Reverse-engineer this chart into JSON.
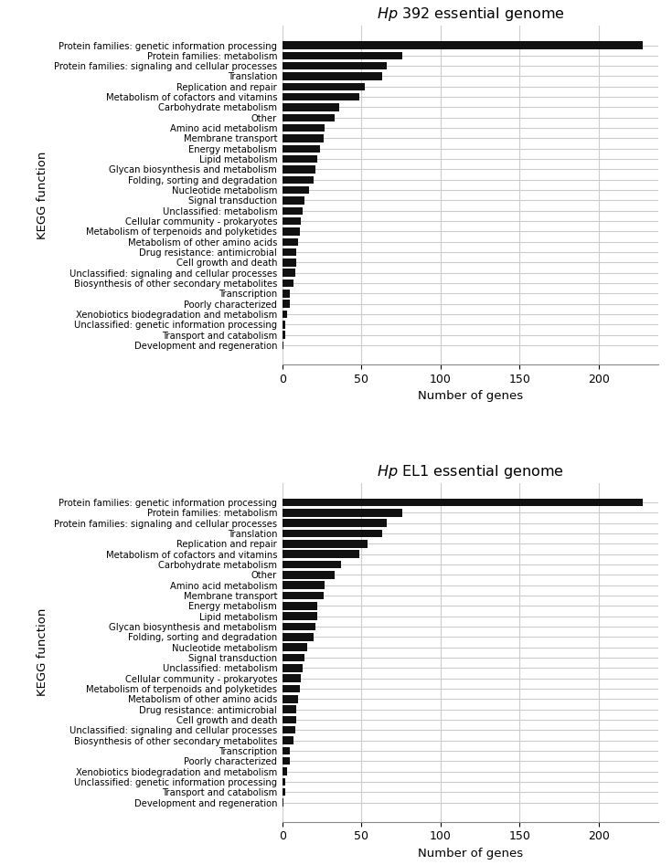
{
  "categories": [
    "Protein families: genetic information processing",
    "Protein families: metabolism",
    "Protein families: signaling and cellular processes",
    "Translation",
    "Replication and repair",
    "Metabolism of cofactors and vitamins",
    "Carbohydrate metabolism",
    "Other",
    "Amino acid metabolism",
    "Membrane transport",
    "Energy metabolism",
    "Lipid metabolism",
    "Glycan biosynthesis and metabolism",
    "Folding, sorting and degradation",
    "Nucleotide metabolism",
    "Signal transduction",
    "Unclassified: metabolism",
    "Cellular community - prokaryotes",
    "Metabolism of terpenoids and polyketides",
    "Metabolism of other amino acids",
    "Drug resistance: antimicrobial",
    "Cell growth and death",
    "Unclassified: signaling and cellular processes",
    "Biosynthesis of other secondary metabolites",
    "Transcription",
    "Poorly characterized",
    "Xenobiotics biodegradation and metabolism",
    "Unclassified: genetic information processing",
    "Transport and catabolism",
    "Development and regeneration"
  ],
  "hp392_values": [
    228,
    76,
    66,
    63,
    52,
    49,
    36,
    33,
    27,
    26,
    24,
    22,
    21,
    20,
    17,
    14,
    13,
    12,
    11,
    10,
    9,
    9,
    8,
    7,
    5,
    5,
    3,
    2,
    2,
    1
  ],
  "hpEL1_values": [
    228,
    76,
    66,
    63,
    54,
    49,
    37,
    33,
    27,
    26,
    22,
    22,
    21,
    20,
    16,
    14,
    13,
    12,
    11,
    10,
    9,
    9,
    8,
    7,
    5,
    5,
    3,
    2,
    2,
    1
  ],
  "title_392": "$Hp$ 392 essential genome",
  "title_EL1": "$Hp$ EL1 essential genome",
  "xlabel": "Number of genes",
  "ylabel": "KEGG function",
  "bar_color": "#111111",
  "bg_color": "#ffffff",
  "grid_color": "#cccccc",
  "xlim": [
    0,
    238
  ],
  "xticks": [
    0,
    50,
    100,
    150,
    200
  ]
}
